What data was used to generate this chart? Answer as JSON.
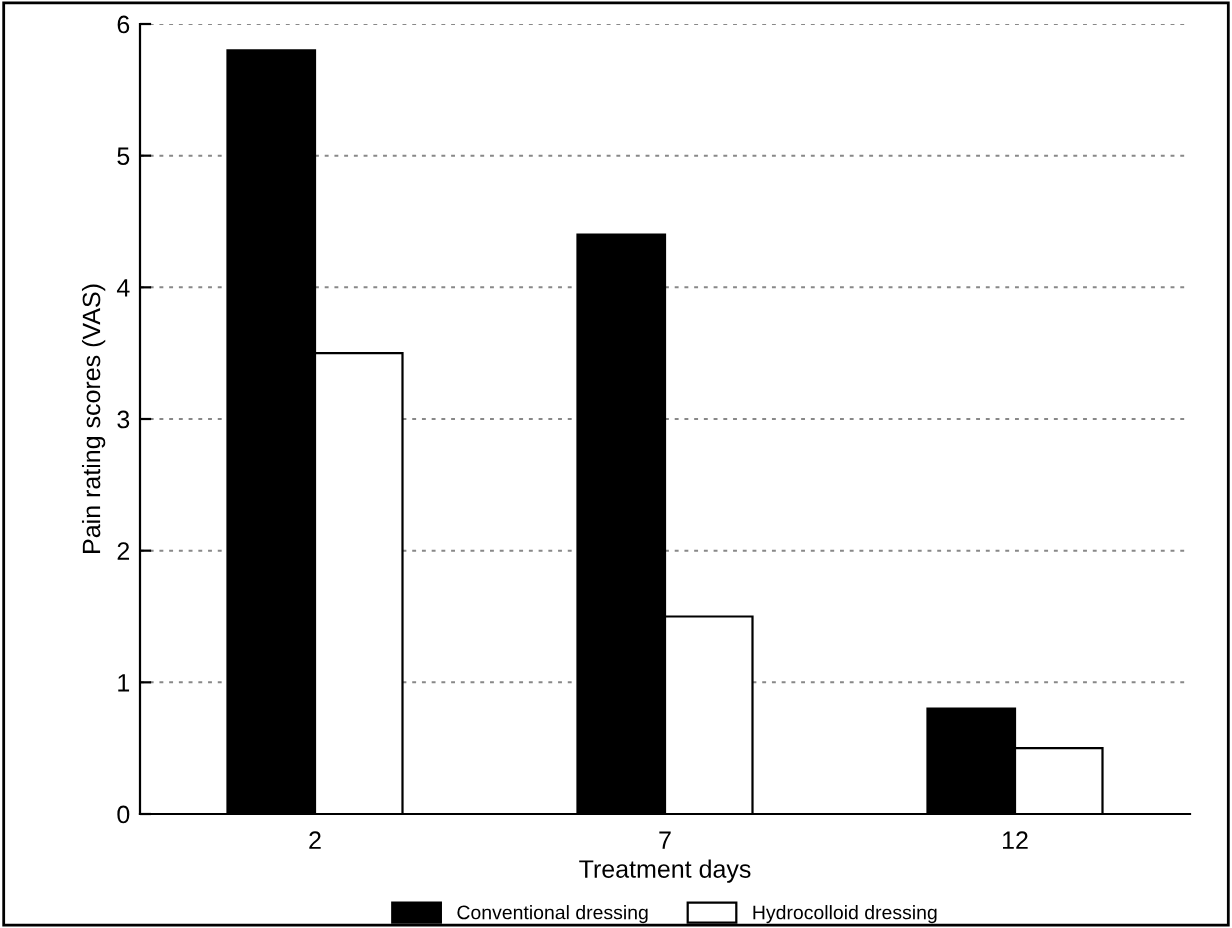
{
  "chart_data": {
    "type": "bar",
    "xlabel": "Treatment days",
    "ylabel": "Pain rating scores (VAS)",
    "categories": [
      "2",
      "7",
      "12"
    ],
    "series": [
      {
        "name": "Conventional dressing",
        "color": "#000000",
        "values": [
          5.8,
          4.4,
          0.8
        ]
      },
      {
        "name": "Hydrocolloid dressing",
        "color": "#ffffff",
        "values": [
          3.5,
          1.5,
          0.5
        ]
      }
    ],
    "ylim": [
      0,
      6
    ],
    "yticks": [
      0,
      1,
      2,
      3,
      4,
      5,
      6
    ],
    "grid": "y",
    "legend": "bottom"
  }
}
